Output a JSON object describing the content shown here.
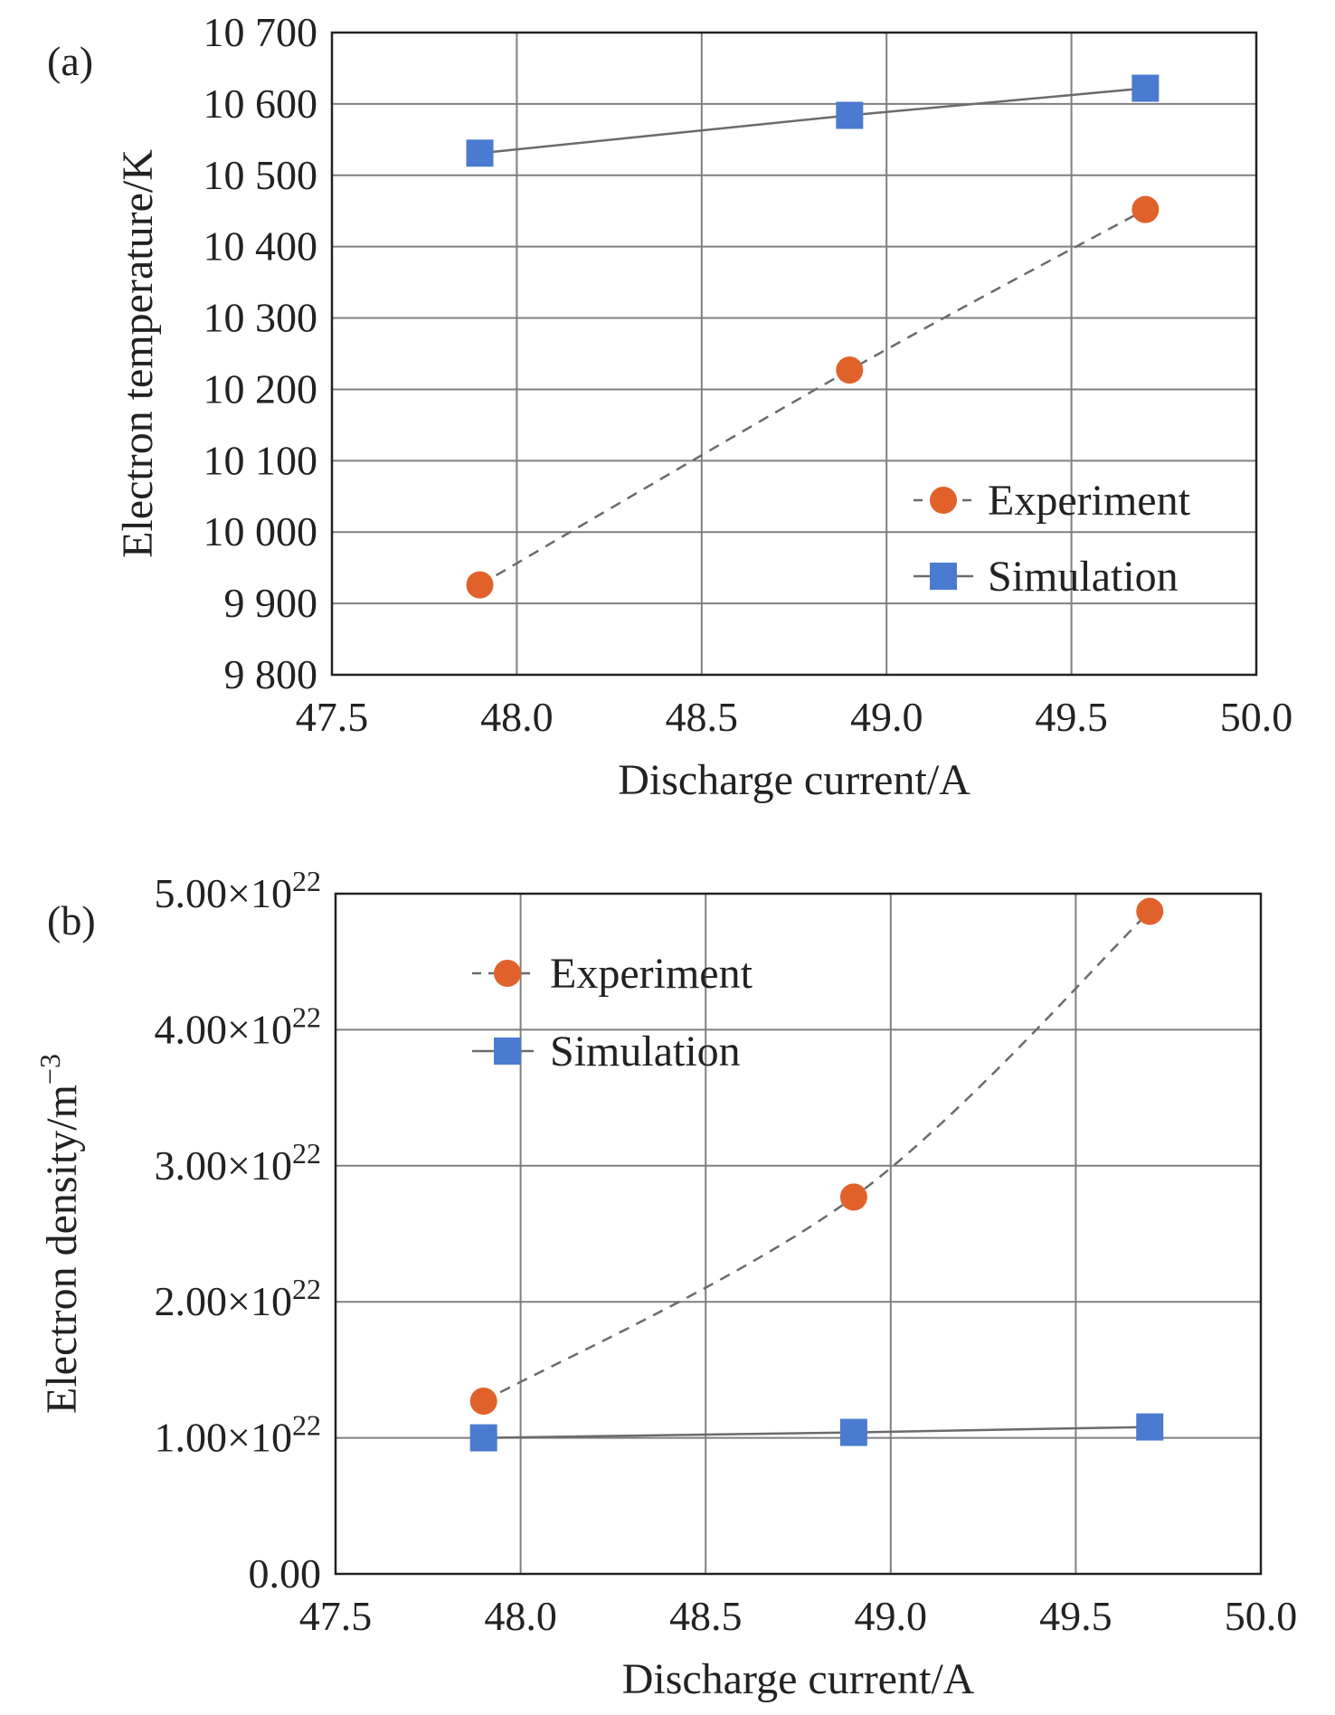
{
  "chart_data": [
    {
      "type": "line",
      "panel_label": "(a)",
      "title": "",
      "xlabel": "Discharge current/A",
      "ylabel": "Electron temperature/K",
      "xlim": [
        47.5,
        50.0
      ],
      "ylim": [
        9800,
        10700
      ],
      "x_ticks": [
        "47.5",
        "48.0",
        "48.5",
        "49.0",
        "49.5",
        "50.0"
      ],
      "y_ticks": [
        "9 800",
        "9 900",
        "10 000",
        "10 100",
        "10 200",
        "10 300",
        "10 400",
        "10 500",
        "10 600",
        "10 700"
      ],
      "grid": true,
      "legend_position": "bottom-right",
      "series": [
        {
          "name": "Experiment",
          "marker": "circle",
          "line": "dashed",
          "color": "#e0622a",
          "x": [
            47.9,
            48.9,
            49.7
          ],
          "y": [
            9926,
            10227,
            10452
          ]
        },
        {
          "name": "Simulation",
          "marker": "square",
          "line": "solid",
          "color": "#4a7bd0",
          "x": [
            47.9,
            48.9,
            49.7
          ],
          "y": [
            10531,
            10584,
            10622
          ]
        }
      ]
    },
    {
      "type": "line",
      "panel_label": "(b)",
      "title": "",
      "xlabel": "Discharge current/A",
      "ylabel": "Electron density/m",
      "ylabel_superscript": "−3",
      "xlim": [
        47.5,
        50.0
      ],
      "ylim": [
        0,
        5.0
      ],
      "y_scale_note": "values ×10^22 m^-3",
      "x_ticks": [
        "47.5",
        "48.0",
        "48.5",
        "49.0",
        "49.5",
        "50.0"
      ],
      "y_ticks": [
        {
          "value": 0,
          "mantissa": "0.00",
          "exp": ""
        },
        {
          "value": 1,
          "mantissa": "1.00×10",
          "exp": "22"
        },
        {
          "value": 2,
          "mantissa": "2.00×10",
          "exp": "22"
        },
        {
          "value": 3,
          "mantissa": "3.00×10",
          "exp": "22"
        },
        {
          "value": 4,
          "mantissa": "4.00×10",
          "exp": "22"
        },
        {
          "value": 5,
          "mantissa": "5.00×10",
          "exp": "22"
        }
      ],
      "grid": true,
      "legend_position": "top-left",
      "series": [
        {
          "name": "Experiment",
          "marker": "circle",
          "line": "dashed",
          "color": "#e0622a",
          "x": [
            47.9,
            48.9,
            49.7
          ],
          "y": [
            1.27,
            2.77,
            4.87
          ]
        },
        {
          "name": "Simulation",
          "marker": "square",
          "line": "solid",
          "color": "#4a7bd0",
          "x": [
            47.9,
            48.9,
            49.7
          ],
          "y": [
            1.0,
            1.04,
            1.08
          ]
        }
      ]
    }
  ]
}
